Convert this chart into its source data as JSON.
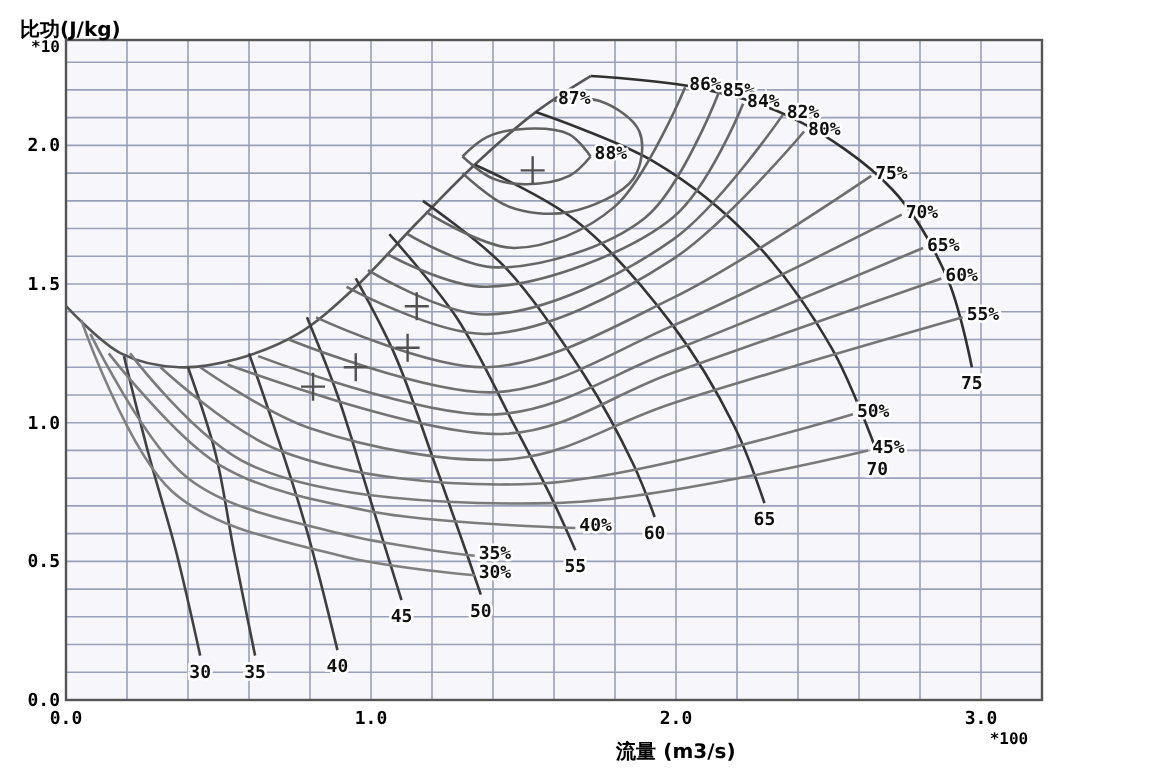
{
  "chart_data": {
    "type": "line",
    "xlabel": "流量 (m3/s)",
    "ylabel": "比功(J/kg)",
    "annotations": [
      "*10",
      "*100"
    ],
    "xlim": [
      0,
      3.2
    ],
    "ylim": [
      0,
      2.38
    ],
    "xticks": [
      {
        "value": 0,
        "label": "0.0"
      },
      {
        "value": 0.2,
        "label": null
      },
      {
        "value": 0.4,
        "label": null
      },
      {
        "value": 0.6,
        "label": null
      },
      {
        "value": 0.8,
        "label": null
      },
      {
        "value": 1,
        "label": "1.0"
      },
      {
        "value": 1.2,
        "label": null
      },
      {
        "value": 1.4,
        "label": null
      },
      {
        "value": 1.6,
        "label": null
      },
      {
        "value": 1.8,
        "label": null
      },
      {
        "value": 2,
        "label": "2.0"
      },
      {
        "value": 2.2,
        "label": null
      },
      {
        "value": 2.4,
        "label": null
      },
      {
        "value": 2.6,
        "label": null
      },
      {
        "value": 2.8,
        "label": null
      },
      {
        "value": 3,
        "label": "3.0"
      }
    ],
    "yticks": [
      {
        "value": 0,
        "label": "0.0"
      },
      {
        "value": 0.1,
        "label": null
      },
      {
        "value": 0.2,
        "label": null
      },
      {
        "value": 0.3,
        "label": null
      },
      {
        "value": 0.4,
        "label": null
      },
      {
        "value": 0.5,
        "label": "0.5"
      },
      {
        "value": 0.6,
        "label": null
      },
      {
        "value": 0.7,
        "label": null
      },
      {
        "value": 0.8,
        "label": null
      },
      {
        "value": 0.9,
        "label": null
      },
      {
        "value": 1,
        "label": "1.0"
      },
      {
        "value": 1.1,
        "label": null
      },
      {
        "value": 1.2,
        "label": null
      },
      {
        "value": 1.3,
        "label": null
      },
      {
        "value": 1.4,
        "label": null
      },
      {
        "value": 1.5,
        "label": "1.5"
      },
      {
        "value": 1.6,
        "label": null
      },
      {
        "value": 1.7,
        "label": null
      },
      {
        "value": 1.8,
        "label": null
      },
      {
        "value": 1.9,
        "label": null
      },
      {
        "value": 2,
        "label": "2.0"
      },
      {
        "value": 2.1,
        "label": null
      },
      {
        "value": 2.2,
        "label": null
      },
      {
        "value": 2.3,
        "label": null
      }
    ],
    "grid": true,
    "legend": false,
    "series": [
      {
        "color": "#555555",
        "x": [
          0,
          0.18,
          0.37,
          0.56,
          0.76,
          0.95,
          1.15,
          1.34,
          1.54,
          1.72
        ],
        "values": [
          1.42,
          1.25,
          1.2,
          1.23,
          1.32,
          1.49,
          1.72,
          1.93,
          2.12,
          2.25
        ]
      },
      {
        "name": "75",
        "color": "#303030",
        "x": [
          1.72,
          2.06,
          2.38,
          2.71,
          2.89,
          2.97
        ],
        "values": [
          2.25,
          2.21,
          2.1,
          1.84,
          1.52,
          1.2
        ]
      },
      {
        "name": "70",
        "color": "#323232",
        "x": [
          1.54,
          1.93,
          2.25,
          2.51,
          2.66
        ],
        "values": [
          2.12,
          1.94,
          1.66,
          1.27,
          0.89
        ]
      },
      {
        "name": "65",
        "color": "#343434",
        "x": [
          1.34,
          1.67,
          1.99,
          2.19,
          2.29
        ],
        "values": [
          1.93,
          1.73,
          1.35,
          0.99,
          0.71
        ]
      },
      {
        "name": "60",
        "color": "#363636",
        "x": [
          1.17,
          1.44,
          1.7,
          1.86,
          1.93
        ],
        "values": [
          1.8,
          1.56,
          1.17,
          0.85,
          0.66
        ]
      },
      {
        "name": "55",
        "color": "#383838",
        "x": [
          1.06,
          1.28,
          1.47,
          1.6,
          1.67
        ],
        "values": [
          1.68,
          1.38,
          0.99,
          0.71,
          0.54
        ]
      },
      {
        "name": "50",
        "color": "#3a3a3a",
        "x": [
          0.95,
          1.08,
          1.21,
          1.31,
          1.36
        ],
        "values": [
          1.52,
          1.24,
          0.85,
          0.54,
          0.38
        ]
      },
      {
        "name": "45",
        "color": "#3c3c3c",
        "x": [
          0.79,
          0.89,
          0.99,
          1.1
        ],
        "values": [
          1.38,
          1.1,
          0.75,
          0.36
        ]
      },
      {
        "name": "40",
        "color": "#3e3e3e",
        "x": [
          0.6,
          0.69,
          0.79,
          0.89
        ],
        "values": [
          1.25,
          0.96,
          0.61,
          0.18
        ]
      },
      {
        "name": "35",
        "color": "#404040",
        "x": [
          0.4,
          0.49,
          0.55,
          0.62
        ],
        "values": [
          1.2,
          0.89,
          0.54,
          0.16
        ]
      },
      {
        "name": "30",
        "color": "#424242",
        "x": [
          0.19,
          0.27,
          0.36,
          0.44
        ],
        "values": [
          1.24,
          0.89,
          0.54,
          0.16
        ]
      },
      {
        "name": "88%",
        "color": "#606060",
        "x": [
          1.3,
          1.4,
          1.51,
          1.65,
          1.72
        ],
        "values": [
          1.96,
          1.88,
          1.86,
          1.89,
          1.96
        ]
      },
      {
        "color": "#616161",
        "x": [
          1.3,
          1.38,
          1.51,
          1.65,
          1.72
        ],
        "values": [
          1.96,
          2.03,
          2.06,
          2.04,
          1.96
        ]
      },
      {
        "name": "87%",
        "color": "#626262",
        "x": [
          1.3,
          1.45,
          1.65,
          1.86,
          1.88,
          1.75,
          1.6
        ],
        "values": [
          1.9,
          1.78,
          1.76,
          1.88,
          2.05,
          2.16,
          2.16
        ]
      },
      {
        "name": "86%",
        "color": "#646464",
        "x": [
          1.18,
          1.47,
          1.8,
          2.03
        ],
        "values": [
          1.76,
          1.63,
          1.78,
          2.21
        ]
      },
      {
        "name": "85%",
        "color": "#666666",
        "x": [
          1.12,
          1.41,
          1.9,
          2.14
        ],
        "values": [
          1.68,
          1.56,
          1.74,
          2.19
        ]
      },
      {
        "name": "84%",
        "color": "#686868",
        "x": [
          1.05,
          1.38,
          1.99,
          2.22
        ],
        "values": [
          1.61,
          1.49,
          1.74,
          2.15
        ]
      },
      {
        "name": "82%",
        "color": "#6a6a6a",
        "x": [
          0.99,
          1.38,
          1.99,
          2.35
        ],
        "values": [
          1.55,
          1.39,
          1.66,
          2.11
        ]
      },
      {
        "name": "80%",
        "color": "#6c6c6c",
        "x": [
          0.92,
          1.38,
          1.99,
          2.42
        ],
        "values": [
          1.49,
          1.32,
          1.59,
          2.05
        ]
      },
      {
        "name": "75%",
        "color": "#6e6e6e",
        "x": [
          0.82,
          1.38,
          1.99,
          2.64
        ],
        "values": [
          1.38,
          1.2,
          1.45,
          1.89
        ]
      },
      {
        "name": "70%",
        "color": "#707070",
        "x": [
          0.73,
          1.41,
          1.99,
          2.74
        ],
        "values": [
          1.3,
          1.11,
          1.35,
          1.75
        ]
      },
      {
        "name": "65%",
        "color": "#727272",
        "x": [
          0.63,
          1.41,
          1.99,
          2.81
        ],
        "values": [
          1.24,
          1.03,
          1.26,
          1.63
        ]
      },
      {
        "name": "60%",
        "color": "#747474",
        "x": [
          0.53,
          1.44,
          1.99,
          2.87
        ],
        "values": [
          1.21,
          0.96,
          1.18,
          1.52
        ]
      },
      {
        "name": "55%",
        "color": "#767676",
        "x": [
          0.44,
          0.8,
          1.47,
          1.99,
          2.94
        ],
        "values": [
          1.2,
          0.98,
          0.87,
          1.07,
          1.38
        ]
      },
      {
        "name": "50%",
        "color": "#787878",
        "x": [
          0.31,
          0.7,
          1.54,
          2.58
        ],
        "values": [
          1.2,
          0.9,
          0.78,
          1.03
        ]
      },
      {
        "name": "45%",
        "color": "#7a7a7a",
        "x": [
          0.21,
          0.6,
          1.6,
          2.63
        ],
        "values": [
          1.25,
          0.85,
          0.71,
          0.9
        ]
      },
      {
        "name": "40%",
        "color": "#7c7c7c",
        "x": [
          0.14,
          0.5,
          1,
          1.67
        ],
        "values": [
          1.25,
          0.85,
          0.68,
          0.62
        ]
      },
      {
        "name": "35%",
        "color": "#7e7e7e",
        "x": [
          0.08,
          0.4,
          0.9,
          1.34
        ],
        "values": [
          1.32,
          0.8,
          0.6,
          0.52
        ]
      },
      {
        "name": "30%",
        "color": "#808080",
        "x": [
          0.05,
          0.35,
          0.9,
          1.34
        ],
        "values": [
          1.37,
          0.75,
          0.52,
          0.45
        ]
      },
      {
        "type": "scatter",
        "marker": "cross",
        "color": "#505050",
        "x": [
          1.53,
          1.15,
          1.12,
          0.95,
          0.81
        ],
        "values": [
          1.91,
          1.42,
          1.27,
          1.2,
          1.13
        ]
      }
    ]
  }
}
